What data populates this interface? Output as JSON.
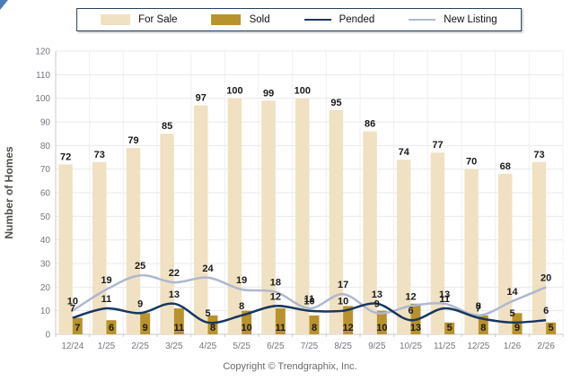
{
  "legend": {
    "items": [
      {
        "label": "For Sale",
        "swatch": "bar",
        "color": "#F0E1C2"
      },
      {
        "label": "Sold",
        "swatch": "bar",
        "color": "#B8922D"
      },
      {
        "label": "Pended",
        "swatch": "line",
        "color": "#17375E"
      },
      {
        "label": "New Listing",
        "swatch": "line",
        "color": "#AFB8CE"
      }
    ]
  },
  "chart_data": {
    "type": "bar",
    "subtype": "clustered bars with smoothed overlay lines",
    "categories": [
      "12/24",
      "1/25",
      "2/25",
      "3/25",
      "4/25",
      "5/25",
      "6/25",
      "7/25",
      "8/25",
      "9/25",
      "10/25",
      "11/25",
      "12/25",
      "1/26",
      "2/26"
    ],
    "series": [
      {
        "name": "For Sale",
        "type": "bar",
        "color": "#F0E1C2",
        "values": [
          72,
          73,
          79,
          85,
          97,
          100,
          99,
          100,
          95,
          86,
          74,
          77,
          70,
          68,
          73
        ]
      },
      {
        "name": "Sold",
        "type": "bar",
        "color": "#B8922D",
        "values": [
          7,
          6,
          9,
          11,
          8,
          10,
          11,
          8,
          12,
          10,
          13,
          5,
          8,
          9,
          5
        ]
      },
      {
        "name": "Pended",
        "type": "line",
        "color": "#17375E",
        "values": [
          7,
          11,
          9,
          13,
          5,
          8,
          12,
          10,
          10,
          13,
          6,
          11,
          7,
          5,
          6
        ]
      },
      {
        "name": "New Listing",
        "type": "line",
        "color": "#AFB8CE",
        "values": [
          10,
          19,
          25,
          22,
          24,
          19,
          18,
          11,
          17,
          9,
          12,
          13,
          8,
          14,
          20
        ]
      }
    ],
    "ylabel": "Number of Homes",
    "xlabel": "",
    "title": "",
    "ylim": [
      0,
      120
    ],
    "ytick_step": 10,
    "grid": "on",
    "legend_position": "top-center",
    "data_labels": "on"
  },
  "colors": {
    "grid_line": "#e9e9e9",
    "axis_line": "#c9c9c9",
    "tick_label": "#75757f",
    "data_label": "#1a1a1a",
    "ylabel_text": "#4f4f4a"
  },
  "footer": {
    "text": "Copyright © Trendgraphix, Inc."
  }
}
